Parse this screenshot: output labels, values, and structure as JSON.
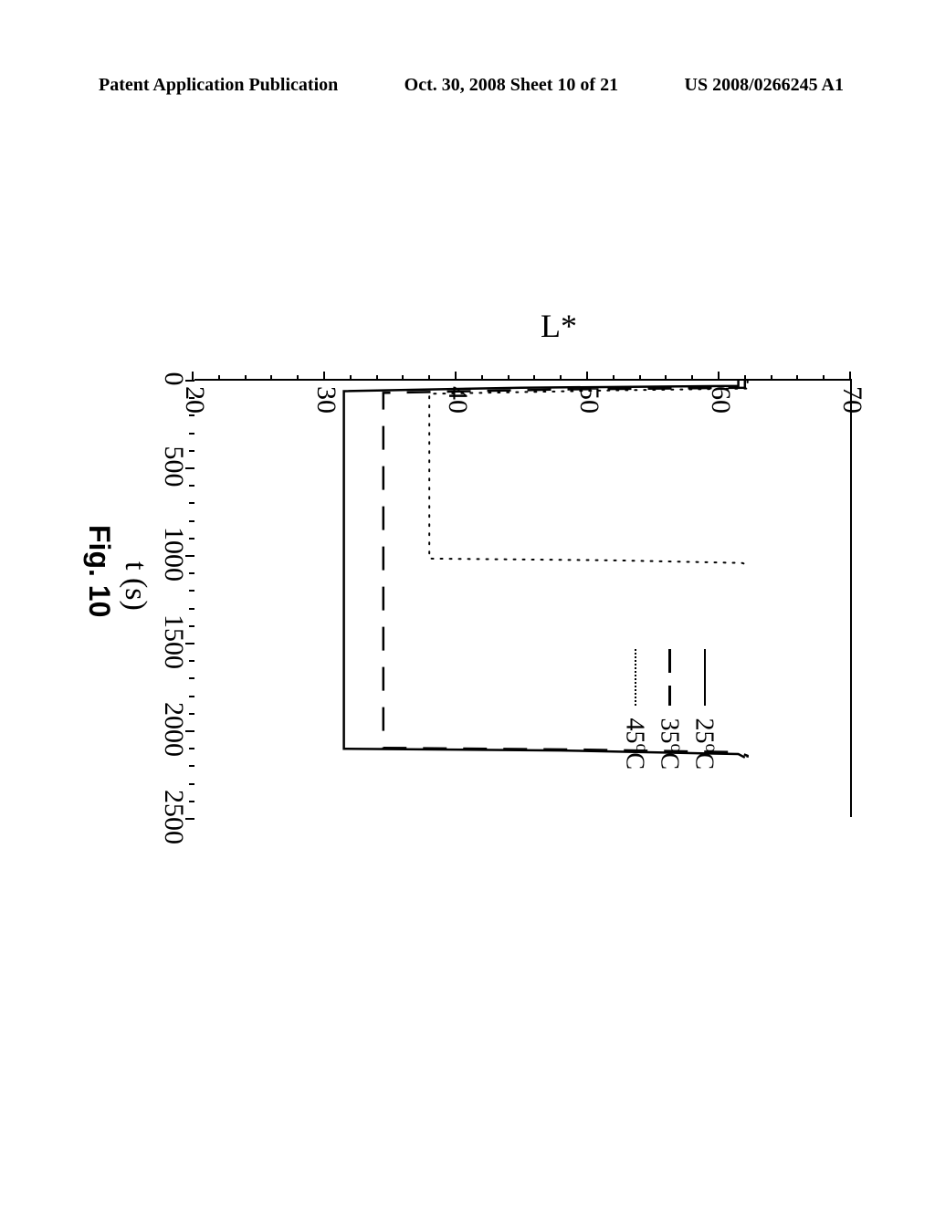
{
  "header": {
    "left": "Patent Application Publication",
    "center": "Oct. 30, 2008  Sheet 10 of 21",
    "right": "US 2008/0266245 A1"
  },
  "chart": {
    "type": "line",
    "xlabel": "t (s)",
    "ylabel": "L*",
    "caption": "Fig. 10",
    "xlim": [
      0,
      2500
    ],
    "ylim": [
      20,
      70
    ],
    "xtick_major": [
      0,
      500,
      1000,
      1500,
      2000,
      2500
    ],
    "xtick_minor_step": 100,
    "ytick_major": [
      20,
      30,
      40,
      50,
      60,
      70
    ],
    "ytick_minor_step": 2,
    "axis_color": "#000000",
    "background_color": "#ffffff",
    "tick_fontsize": 30,
    "label_fontsize": 36,
    "caption_fontsize": 32,
    "series": [
      {
        "name": "25°C",
        "style": "solid",
        "line_width": 2.5,
        "color": "#000000",
        "x": [
          0,
          30,
          40,
          60,
          2100,
          2110,
          2130,
          2150,
          2150
        ],
        "y": [
          61.5,
          61.5,
          45,
          31.5,
          31.5,
          48,
          61.5,
          62,
          62
        ]
      },
      {
        "name": "35°C",
        "style": "dash-long",
        "dash_on": 26,
        "dash_off": 18,
        "line_width": 2.5,
        "color": "#000000",
        "x": [
          0,
          40,
          50,
          70,
          2095,
          2105,
          2120,
          2140,
          2150
        ],
        "y": [
          62,
          62,
          48,
          34.5,
          34.5,
          50,
          61.5,
          62.2,
          62.2
        ]
      },
      {
        "name": "45°C",
        "style": "dot",
        "dot_spacing": 10,
        "line_width": 2,
        "color": "#000000",
        "x": [
          0,
          45,
          55,
          75,
          1015,
          1025,
          1040,
          1055,
          1060
        ],
        "y": [
          62.2,
          62.2,
          52,
          38,
          38,
          52,
          61.8,
          62.3,
          62.3
        ]
      }
    ],
    "legend": {
      "items": [
        {
          "label": "25°C",
          "style": "solid"
        },
        {
          "label": "35°C",
          "style": "dash-long"
        },
        {
          "label": "45°C",
          "style": "dot"
        }
      ],
      "fontsize": 28
    }
  }
}
